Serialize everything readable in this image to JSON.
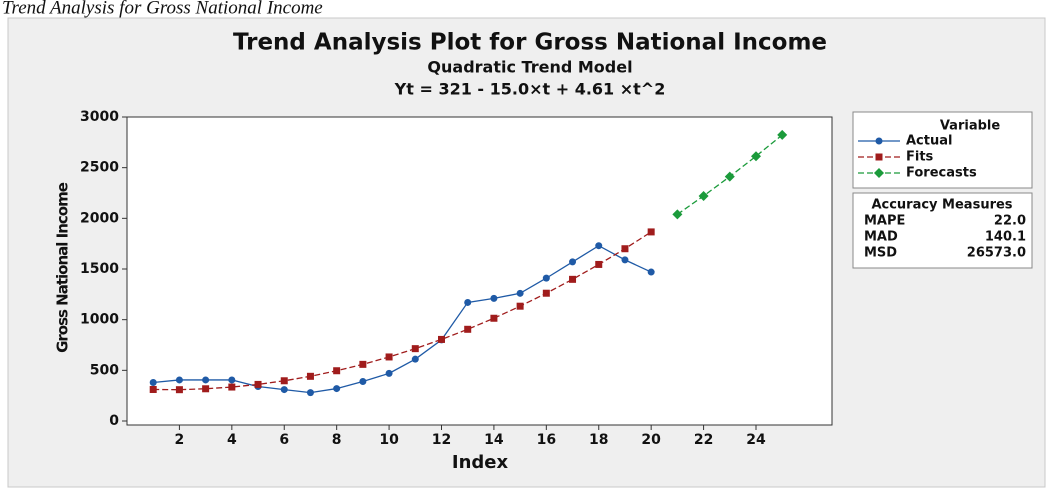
{
  "caption": "Trend Analysis for Gross National Income",
  "chart_data": {
    "type": "line",
    "title": "Trend Analysis Plot for Gross National Income",
    "subtitle": "Quadratic Trend Model",
    "equation": "Yt = 321 - 15.0×t + 4.61 ×t^2",
    "x_label": "Index",
    "y_label": "Gross National Income",
    "x": [
      1,
      2,
      3,
      4,
      5,
      6,
      7,
      8,
      9,
      10,
      11,
      12,
      13,
      14,
      15,
      16,
      17,
      18,
      19,
      20,
      21,
      22,
      23,
      24,
      25
    ],
    "xlim": [
      0,
      26.9
    ],
    "ylim": [
      0,
      3000
    ],
    "xticks": [
      2,
      4,
      6,
      8,
      10,
      12,
      14,
      16,
      18,
      20,
      22,
      24
    ],
    "yticks": [
      0,
      500,
      1000,
      1500,
      2000,
      2500,
      3000
    ],
    "grid": false,
    "legend_title": "Variable",
    "series": [
      {
        "name": "Actual",
        "color": "#1f5aa6",
        "marker": "circle",
        "dashed": false,
        "values": [
          380,
          405,
          405,
          405,
          340,
          310,
          280,
          320,
          390,
          470,
          610,
          800,
          1170,
          1210,
          1260,
          1410,
          1570,
          1730,
          1590,
          1470,
          null,
          null,
          null,
          null,
          null
        ]
      },
      {
        "name": "Fits",
        "color": "#a01c1c",
        "marker": "square",
        "dashed": true,
        "values": [
          311,
          309,
          318,
          335,
          361,
          397,
          441,
          496,
          559,
          632,
          714,
          805,
          905,
          1014,
          1133,
          1261,
          1398,
          1545,
          1700,
          1866,
          null,
          null,
          null,
          null,
          null
        ]
      },
      {
        "name": "Forecasts",
        "color": "#1b9b3b",
        "marker": "diamond",
        "dashed": true,
        "values": [
          null,
          null,
          null,
          null,
          null,
          null,
          null,
          null,
          null,
          null,
          null,
          null,
          null,
          null,
          null,
          null,
          null,
          null,
          null,
          null,
          2039,
          2221,
          2412,
          2613,
          2823
        ]
      }
    ],
    "accuracy": {
      "title": "Accuracy Measures",
      "rows": [
        [
          "MAPE",
          "22.0"
        ],
        [
          "MAD",
          "140.1"
        ],
        [
          "MSD",
          "26573.0"
        ]
      ]
    }
  }
}
